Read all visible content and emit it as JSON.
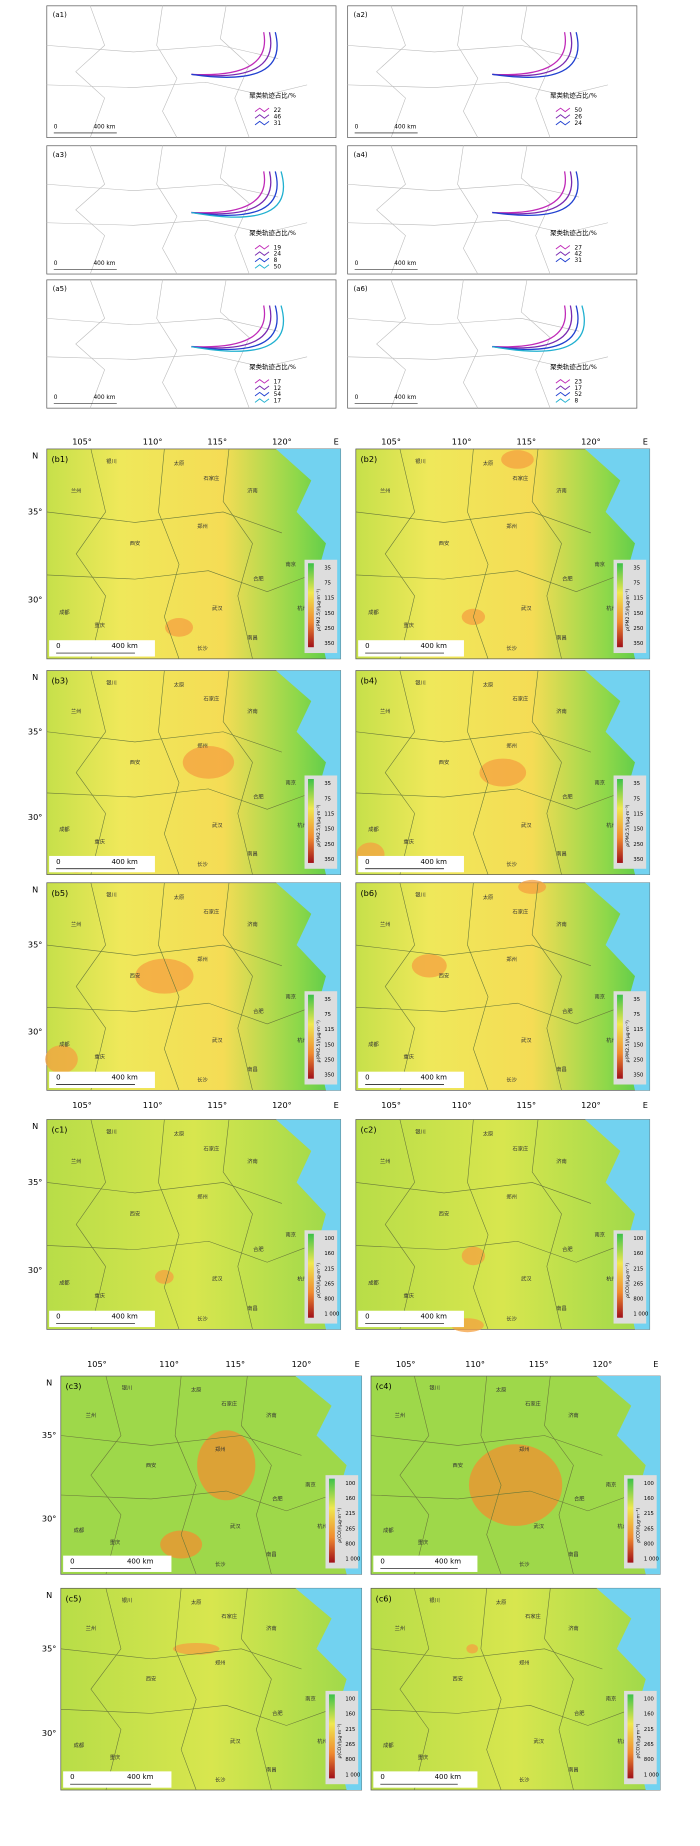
{
  "map_axes": {
    "longitudes": [
      "105°",
      "110°",
      "115°",
      "120°"
    ],
    "east": "E",
    "north": "N",
    "latitudes": [
      "35°",
      "30°"
    ]
  },
  "scale_bar": {
    "start": "0",
    "end": "400 km"
  },
  "cities": [
    "太原",
    "石家庄",
    "济南",
    "兰州",
    "银川",
    "西安",
    "郑州",
    "合肥",
    "南京",
    "上海",
    "武汉",
    "杭州",
    "成都",
    "重庆",
    "长沙",
    "南昌"
  ],
  "trajectory_panels": {
    "legend_title": "聚类轨迹占比/%",
    "panels": [
      {
        "label": "(a1)",
        "shares": [
          22,
          46,
          31
        ]
      },
      {
        "label": "(a2)",
        "shares": [
          50,
          26,
          24
        ]
      },
      {
        "label": "(a3)",
        "shares": [
          19,
          24,
          8,
          50
        ]
      },
      {
        "label": "(a4)",
        "shares": [
          27,
          42,
          31
        ]
      },
      {
        "label": "(a5)",
        "shares": [
          17,
          12,
          54,
          17
        ]
      },
      {
        "label": "(a6)",
        "shares": [
          23,
          17,
          52,
          8
        ]
      }
    ]
  },
  "pm25_panels": {
    "colorbar_title": "ρ(PM2.5)/(μg·m⁻³)",
    "colorbar_ticks": [
      35,
      75,
      115,
      150,
      250,
      350
    ],
    "labels": [
      "(b1)",
      "(b2)",
      "(b3)",
      "(b4)",
      "(b5)",
      "(b6)"
    ]
  },
  "co_panels": {
    "colorbar_title": "ρ(CO)/(μg·m⁻³)",
    "colorbar_ticks": [
      100,
      160,
      215,
      265,
      800,
      "1 000"
    ],
    "labels": [
      "(c1)",
      "(c2)",
      "(c3)",
      "(c4)",
      "(c5)",
      "(c6)"
    ]
  }
}
